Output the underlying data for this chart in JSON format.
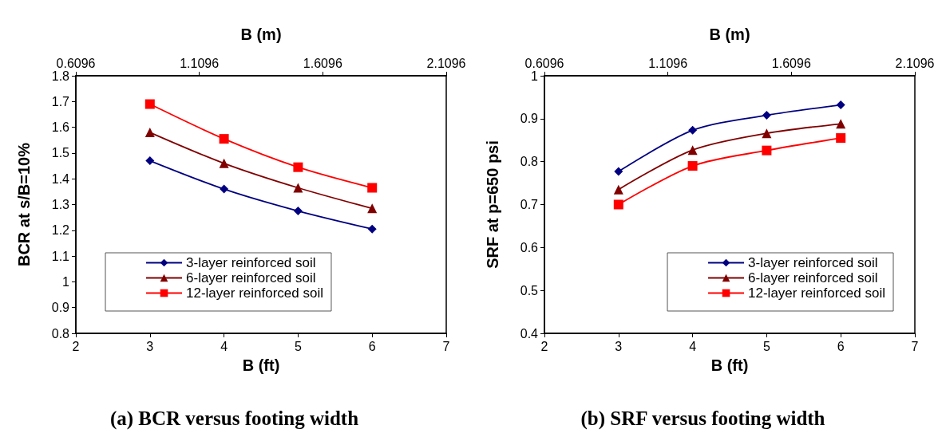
{
  "chart_data": [
    {
      "type": "line",
      "title": "(a) BCR versus footing width",
      "xlabel": "B (ft)",
      "x2label": "B (m)",
      "ylabel": "BCR at s/B=10%",
      "x": [
        3,
        4,
        5,
        6
      ],
      "xlim": [
        2,
        7
      ],
      "xticks": [
        2,
        3,
        4,
        5,
        6,
        7
      ],
      "x2lim": [
        0.6096,
        2.1096
      ],
      "x2ticks": [
        0.6096,
        1.1096,
        1.6096,
        2.1096
      ],
      "ylim": [
        0.8,
        1.8
      ],
      "yticks": [
        0.8,
        0.9,
        1,
        1.1,
        1.2,
        1.3,
        1.4,
        1.5,
        1.6,
        1.7,
        1.8
      ],
      "grid": false,
      "legend": "bottom",
      "series": [
        {
          "name": "3-layer reinforced soil",
          "color": "#000080",
          "marker": "diamond",
          "values": [
            1.47,
            1.36,
            1.275,
            1.205
          ]
        },
        {
          "name": "6-layer reinforced soil",
          "color": "#800000",
          "marker": "triangle",
          "values": [
            1.58,
            1.46,
            1.365,
            1.285
          ]
        },
        {
          "name": "12-layer reinforced soil",
          "color": "#ff0000",
          "marker": "square",
          "values": [
            1.69,
            1.555,
            1.445,
            1.365
          ]
        }
      ]
    },
    {
      "type": "line",
      "title": "(b) SRF versus footing width",
      "xlabel": "B (ft)",
      "x2label": "B (m)",
      "ylabel": "SRF at p=650 psi",
      "x": [
        3,
        4,
        5,
        6
      ],
      "xlim": [
        2,
        7
      ],
      "xticks": [
        2,
        3,
        4,
        5,
        6,
        7
      ],
      "x2lim": [
        0.6096,
        2.1096
      ],
      "x2ticks": [
        0.6096,
        1.1096,
        1.6096,
        2.1096
      ],
      "ylim": [
        0.4,
        1
      ],
      "yticks": [
        0.4,
        0.5,
        0.6,
        0.7,
        0.8,
        0.9,
        1
      ],
      "grid": false,
      "legend": "bottom right",
      "series": [
        {
          "name": "3-layer reinforced soil",
          "color": "#000080",
          "marker": "diamond",
          "values": [
            0.777,
            0.873,
            0.908,
            0.932
          ]
        },
        {
          "name": "6-layer reinforced soil",
          "color": "#800000",
          "marker": "triangle",
          "values": [
            0.735,
            0.827,
            0.866,
            0.888
          ]
        },
        {
          "name": "12-layer reinforced soil",
          "color": "#ff0000",
          "marker": "square",
          "values": [
            0.7,
            0.79,
            0.826,
            0.855
          ]
        }
      ]
    }
  ]
}
